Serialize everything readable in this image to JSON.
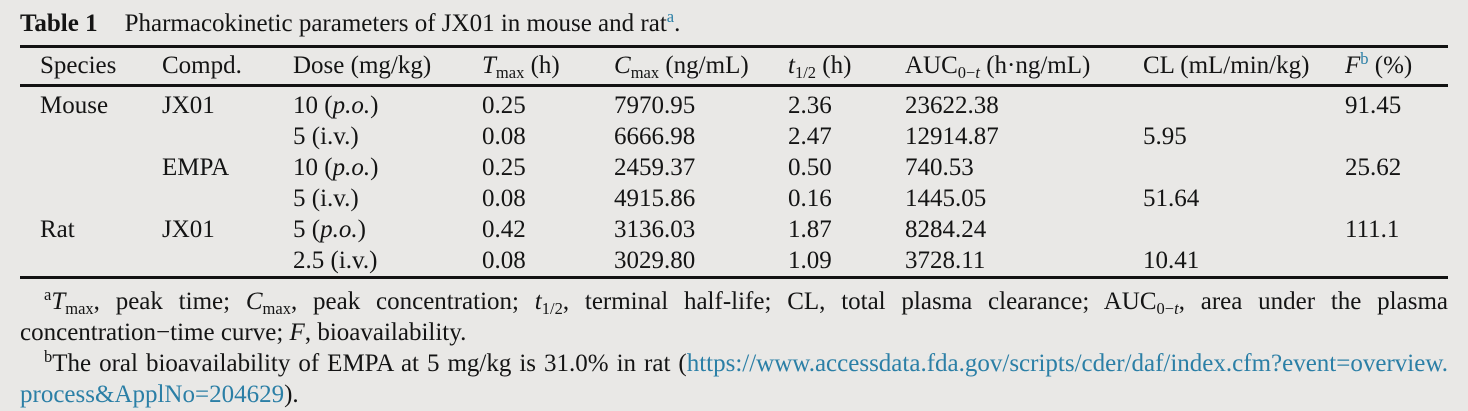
{
  "page": {
    "background": "#e9e8e6",
    "text_color": "#141414",
    "accent_color": "#2b7fa6"
  },
  "table": {
    "title": {
      "label": "Table 1",
      "text": "Pharmacokinetic parameters of JX01 in mouse and rat",
      "marker": "a",
      "period": "."
    },
    "columns": [
      {
        "key": "species",
        "segments": [
          {
            "t": "Species",
            "s": "n"
          }
        ]
      },
      {
        "key": "compd",
        "segments": [
          {
            "t": "Compd.",
            "s": "n"
          }
        ]
      },
      {
        "key": "dose",
        "segments": [
          {
            "t": "Dose (mg/kg)",
            "s": "n"
          }
        ]
      },
      {
        "key": "tmax",
        "segments": [
          {
            "t": "T",
            "s": "i"
          },
          {
            "t": "max",
            "s": "sub"
          },
          {
            "t": " (h)",
            "s": "n"
          }
        ]
      },
      {
        "key": "cmax",
        "segments": [
          {
            "t": "C",
            "s": "i"
          },
          {
            "t": "max",
            "s": "sub"
          },
          {
            "t": " (ng/mL)",
            "s": "n"
          }
        ]
      },
      {
        "key": "t12",
        "segments": [
          {
            "t": "t",
            "s": "i"
          },
          {
            "t": "1/2",
            "s": "sub"
          },
          {
            "t": " (h)",
            "s": "n"
          }
        ]
      },
      {
        "key": "auc",
        "segments": [
          {
            "t": "AUC",
            "s": "n"
          },
          {
            "t": "0−",
            "s": "sub"
          },
          {
            "t": "t",
            "s": "subi"
          },
          {
            "t": " (h·ng/mL)",
            "s": "n"
          }
        ]
      },
      {
        "key": "cl",
        "segments": [
          {
            "t": "CL (mL/min/kg)",
            "s": "n"
          }
        ]
      },
      {
        "key": "f",
        "segments": [
          {
            "t": "F",
            "s": "i"
          },
          {
            "t": "b",
            "s": "supa"
          },
          {
            "t": " (%)",
            "s": "n"
          }
        ]
      }
    ],
    "rows": [
      {
        "cells": [
          [
            {
              "t": "Mouse",
              "s": "n"
            }
          ],
          [
            {
              "t": "JX01",
              "s": "n"
            }
          ],
          [
            {
              "t": "10 (",
              "s": "n"
            },
            {
              "t": "p.o.",
              "s": "i"
            },
            {
              "t": ")",
              "s": "n"
            }
          ],
          [
            {
              "t": "0.25",
              "s": "n"
            }
          ],
          [
            {
              "t": "7970.95",
              "s": "n"
            }
          ],
          [
            {
              "t": "2.36",
              "s": "n"
            }
          ],
          [
            {
              "t": "23622.38",
              "s": "n"
            }
          ],
          [],
          [
            {
              "t": "91.45",
              "s": "n"
            }
          ]
        ]
      },
      {
        "cells": [
          [],
          [],
          [
            {
              "t": "5 (i.v.)",
              "s": "n"
            }
          ],
          [
            {
              "t": "0.08",
              "s": "n"
            }
          ],
          [
            {
              "t": "6666.98",
              "s": "n"
            }
          ],
          [
            {
              "t": "2.47",
              "s": "n"
            }
          ],
          [
            {
              "t": "12914.87",
              "s": "n"
            }
          ],
          [
            {
              "t": "5.95",
              "s": "n"
            }
          ],
          []
        ]
      },
      {
        "cells": [
          [],
          [
            {
              "t": "EMPA",
              "s": "n"
            }
          ],
          [
            {
              "t": "10 (",
              "s": "n"
            },
            {
              "t": "p.o.",
              "s": "i"
            },
            {
              "t": ")",
              "s": "n"
            }
          ],
          [
            {
              "t": "0.25",
              "s": "n"
            }
          ],
          [
            {
              "t": "2459.37",
              "s": "n"
            }
          ],
          [
            {
              "t": "0.50",
              "s": "n"
            }
          ],
          [
            {
              "t": "740.53",
              "s": "n"
            }
          ],
          [],
          [
            {
              "t": "25.62",
              "s": "n"
            }
          ]
        ]
      },
      {
        "cells": [
          [],
          [],
          [
            {
              "t": "5 (i.v.)",
              "s": "n"
            }
          ],
          [
            {
              "t": "0.08",
              "s": "n"
            }
          ],
          [
            {
              "t": "4915.86",
              "s": "n"
            }
          ],
          [
            {
              "t": "0.16",
              "s": "n"
            }
          ],
          [
            {
              "t": "1445.05",
              "s": "n"
            }
          ],
          [
            {
              "t": "51.64",
              "s": "n"
            }
          ],
          []
        ]
      },
      {
        "cells": [
          [
            {
              "t": "Rat",
              "s": "n"
            }
          ],
          [
            {
              "t": "JX01",
              "s": "n"
            }
          ],
          [
            {
              "t": "5 (",
              "s": "n"
            },
            {
              "t": "p.o.",
              "s": "i"
            },
            {
              "t": ")",
              "s": "n"
            }
          ],
          [
            {
              "t": "0.42",
              "s": "n"
            }
          ],
          [
            {
              "t": "3136.03",
              "s": "n"
            }
          ],
          [
            {
              "t": "1.87",
              "s": "n"
            }
          ],
          [
            {
              "t": "8284.24",
              "s": "n"
            }
          ],
          [],
          [
            {
              "t": "111.1",
              "s": "n"
            }
          ]
        ]
      },
      {
        "cells": [
          [],
          [],
          [
            {
              "t": "2.5 (i.v.)",
              "s": "n"
            }
          ],
          [
            {
              "t": "0.08",
              "s": "n"
            }
          ],
          [
            {
              "t": "3029.80",
              "s": "n"
            }
          ],
          [
            {
              "t": "1.09",
              "s": "n"
            }
          ],
          [
            {
              "t": "3728.11",
              "s": "n"
            }
          ],
          [
            {
              "t": "10.41",
              "s": "n"
            }
          ],
          []
        ]
      }
    ]
  },
  "footnotes": {
    "a": {
      "line1": [
        {
          "t": "a",
          "s": "sup"
        },
        {
          "t": "T",
          "s": "i"
        },
        {
          "t": "max",
          "s": "sub"
        },
        {
          "t": ", peak time; ",
          "s": "n"
        },
        {
          "t": "C",
          "s": "i"
        },
        {
          "t": "max",
          "s": "sub"
        },
        {
          "t": ", peak concentration; ",
          "s": "n"
        },
        {
          "t": "t",
          "s": "i"
        },
        {
          "t": "1/2",
          "s": "sub"
        },
        {
          "t": ", terminal half-life; CL, total plasma clearance; AUC",
          "s": "n"
        },
        {
          "t": "0−",
          "s": "sub"
        },
        {
          "t": "t",
          "s": "subi"
        },
        {
          "t": ", area under the plasma",
          "s": "n"
        }
      ],
      "line2": [
        {
          "t": "concentration−time curve; ",
          "s": "n"
        },
        {
          "t": "F",
          "s": "i"
        },
        {
          "t": ", bioavailability.",
          "s": "n"
        }
      ]
    },
    "b": {
      "line1": [
        {
          "t": "b",
          "s": "sup"
        },
        {
          "t": "The oral bioavailability of EMPA at 5 mg/kg is 31.0% in rat (",
          "s": "n"
        },
        {
          "t": "https://www.accessdata.fda.gov/scripts/cder/daf/index.cfm?event=overview.",
          "s": "link"
        }
      ],
      "line2": [
        {
          "t": "process&ApplNo=204629",
          "s": "link"
        },
        {
          "t": ").",
          "s": "n"
        }
      ]
    }
  }
}
